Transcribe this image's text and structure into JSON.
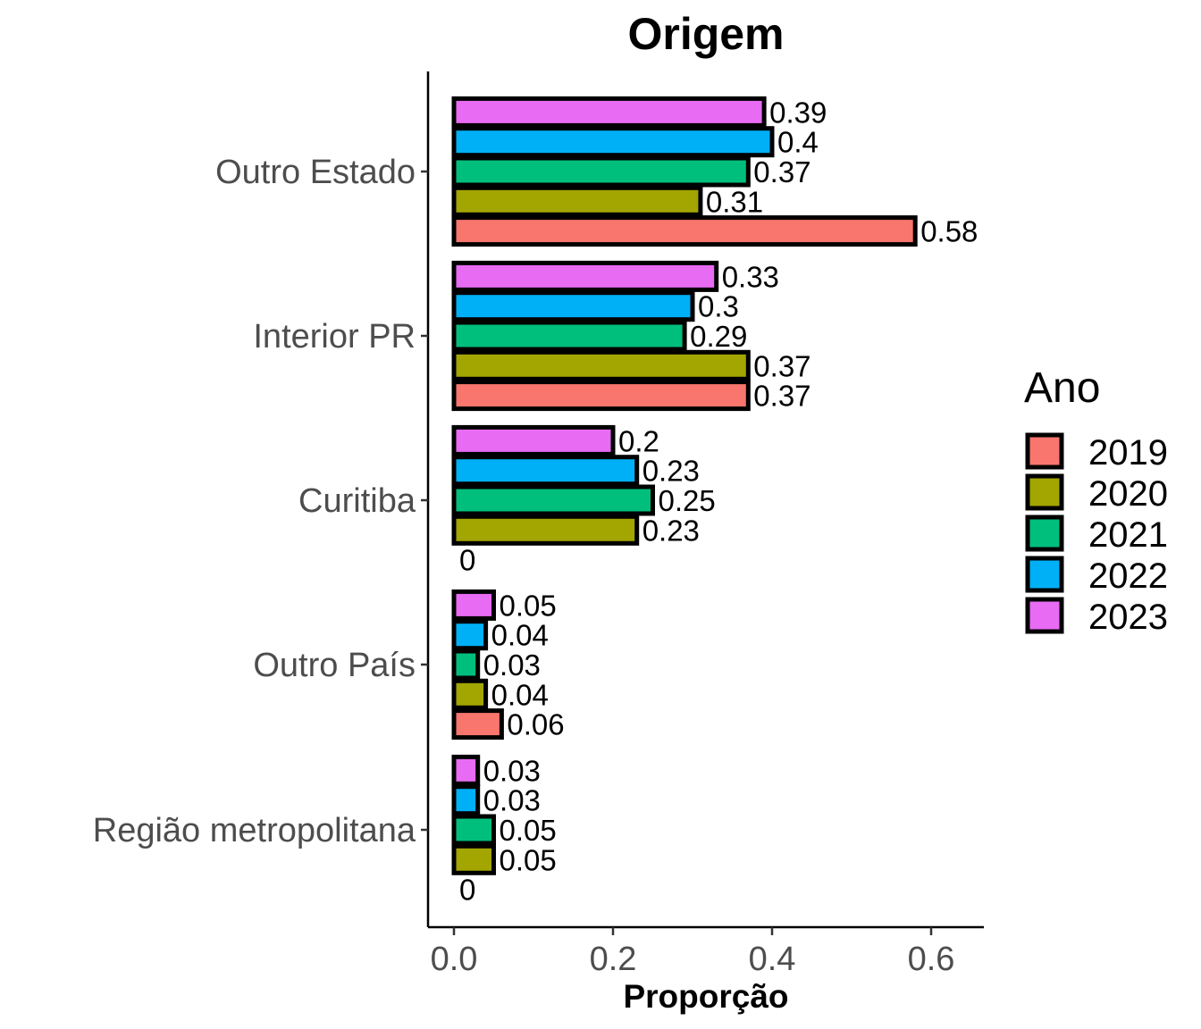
{
  "chart_data": {
    "type": "bar",
    "orientation": "horizontal",
    "title": "Origem",
    "xlabel": "Proporção",
    "ylabel": "",
    "xlim": [
      0,
      0.65
    ],
    "x_ticks": [
      0.0,
      0.2,
      0.4,
      0.6
    ],
    "x_tick_labels": [
      "0.0",
      "0.2",
      "0.4",
      "0.6"
    ],
    "categories": [
      "Outro Estado",
      "Interior PR",
      "Curitiba",
      "Outro País",
      "Região metropolitana"
    ],
    "legend": {
      "title": "Ano",
      "placement": "right"
    },
    "series": [
      {
        "name": "2019",
        "color": "#F8766D",
        "values": [
          0.58,
          0.37,
          0,
          0.06,
          0
        ],
        "labels": [
          "0.58",
          "0.37",
          "0",
          "0.06",
          "0"
        ]
      },
      {
        "name": "2020",
        "color": "#A3A500",
        "values": [
          0.31,
          0.37,
          0.23,
          0.04,
          0.05
        ],
        "labels": [
          "0.31",
          "0.37",
          "0.23",
          "0.04",
          "0.05"
        ]
      },
      {
        "name": "2021",
        "color": "#00BF7D",
        "values": [
          0.37,
          0.29,
          0.25,
          0.03,
          0.05
        ],
        "labels": [
          "0.37",
          "0.29",
          "0.25",
          "0.03",
          "0.05"
        ]
      },
      {
        "name": "2022",
        "color": "#00B0F6",
        "values": [
          0.4,
          0.3,
          0.23,
          0.04,
          0.03
        ],
        "labels": [
          "0.4",
          "0.3",
          "0.23",
          "0.04",
          "0.03"
        ]
      },
      {
        "name": "2023",
        "color": "#E76BF3",
        "values": [
          0.39,
          0.33,
          0.2,
          0.05,
          0.03
        ],
        "labels": [
          "0.39",
          "0.33",
          "0.2",
          "0.05",
          "0.03"
        ]
      }
    ],
    "grid": false
  }
}
